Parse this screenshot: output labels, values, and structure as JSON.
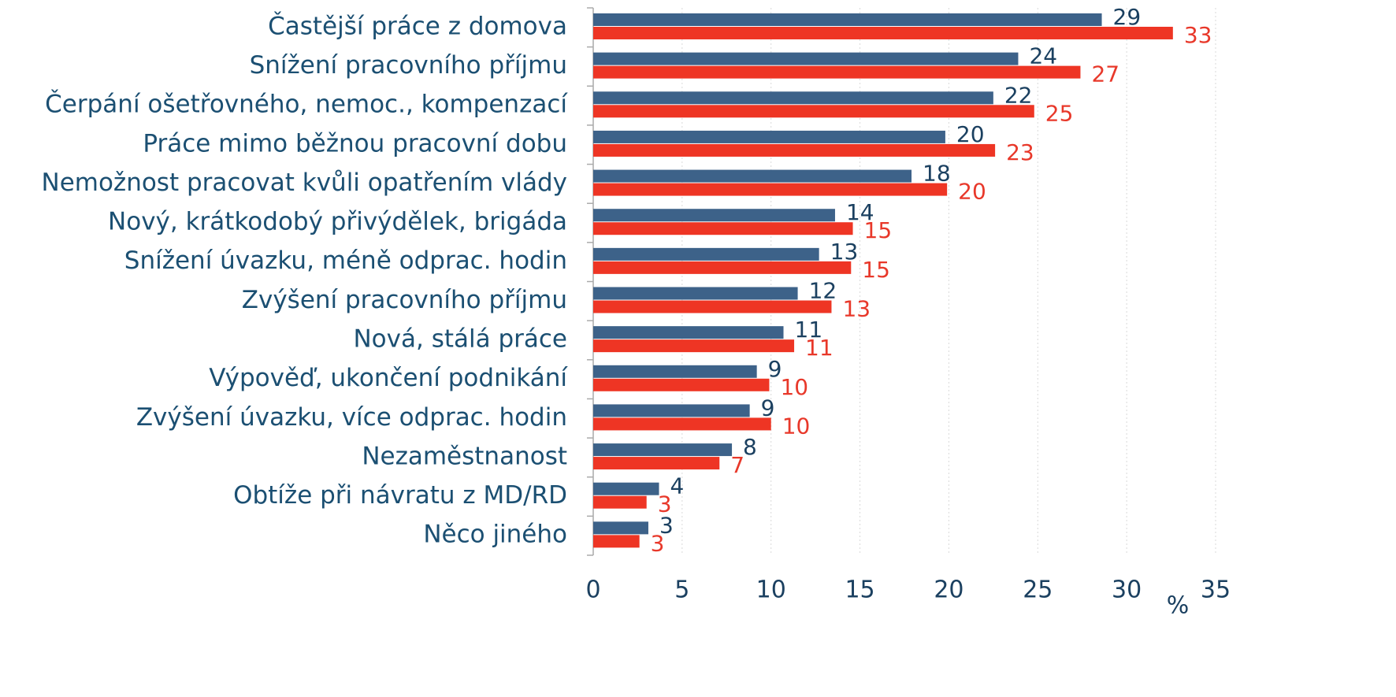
{
  "chart_data": {
    "type": "hbar",
    "categories": [
      "Častější práce z domova",
      "Snížení pracovního příjmu",
      "Čerpání ošetřovného, nemoc., kompenzací",
      "Práce mimo běžnou pracovní dobu",
      "Nemožnost pracovat kvůli opatřením vlády",
      "Nový, krátkodobý přivýdělek, brigáda",
      "Snížení úvazku, méně odprac. hodin",
      "Zvýšení pracovního příjmu",
      "Nová, stálá práce",
      "Výpověď, ukončení podnikání",
      "Zvýšení úvazku, více odprac. hodin",
      "Nezaměstnanost",
      "Obtíže při návratu z MD/RD",
      "Něco jiného"
    ],
    "series": [
      {
        "color": "#3d6289",
        "label_color": "#1b4060",
        "values": [
          28.6,
          23.9,
          22.5,
          19.8,
          17.9,
          13.6,
          12.7,
          11.5,
          10.7,
          9.2,
          8.8,
          7.8,
          3.7,
          3.1
        ],
        "value_labels": [
          "29",
          "24",
          "22",
          "20",
          "18",
          "14",
          "13",
          "12",
          "11",
          "9",
          "9",
          "8",
          "4",
          "3"
        ]
      },
      {
        "color": "#ee3524",
        "label_color": "#e8382a",
        "values": [
          32.6,
          27.4,
          24.8,
          22.6,
          19.9,
          14.6,
          14.5,
          13.4,
          11.3,
          9.9,
          10.0,
          7.1,
          3.0,
          2.6
        ],
        "value_labels": [
          "33",
          "27",
          "25",
          "23",
          "20",
          "15",
          "15",
          "13",
          "11",
          "10",
          "10",
          "7",
          "3",
          "3"
        ]
      }
    ],
    "x_label": "%",
    "xlim": [
      0,
      35
    ],
    "xticks": [
      0,
      5,
      10,
      15,
      20,
      25,
      30,
      35
    ],
    "grid": true
  }
}
